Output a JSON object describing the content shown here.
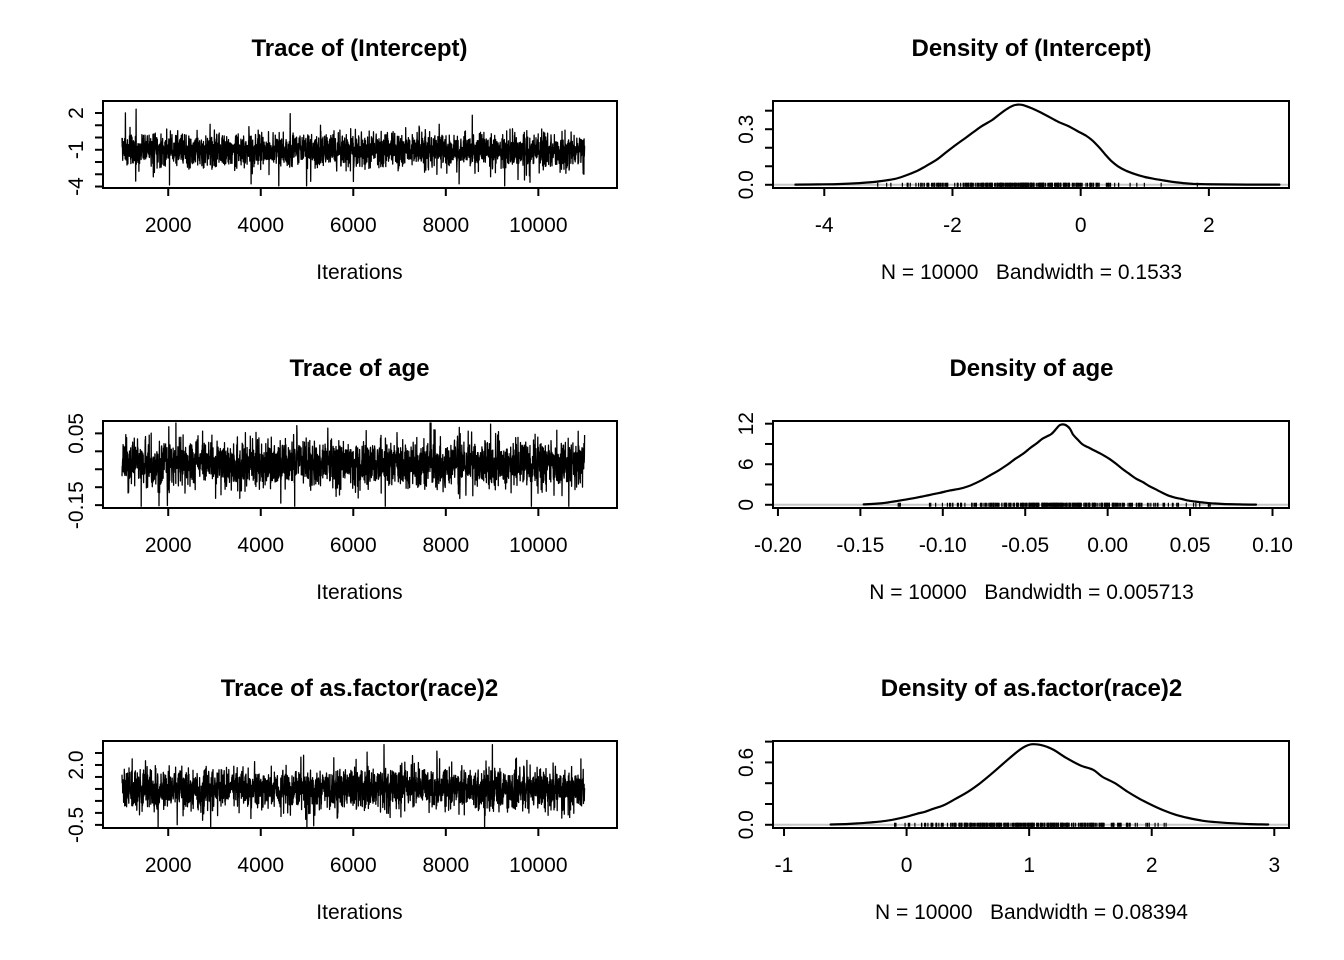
{
  "figure": {
    "background": "#ffffff",
    "foreground": "#000000",
    "baseline_color": "#c6c6c6"
  },
  "chart_data": [
    {
      "id": "trace-intercept",
      "type": "line",
      "kind": "trace",
      "title": "Trace of (Intercept)",
      "xlabel": "Iterations",
      "xlim": [
        590,
        11700
      ],
      "ylim": [
        -4.12,
        2.98
      ],
      "xticks": [
        {
          "v": 2000,
          "label": "2000"
        },
        {
          "v": 4000,
          "label": "4000"
        },
        {
          "v": 6000,
          "label": "6000"
        },
        {
          "v": 8000,
          "label": "8000"
        },
        {
          "v": 10000,
          "label": "10000"
        }
      ],
      "yticks": [
        {
          "v": -4,
          "label": "-4"
        },
        {
          "v": -3,
          "label": ""
        },
        {
          "v": -2,
          "label": ""
        },
        {
          "v": -1,
          "label": "-1"
        },
        {
          "v": 0,
          "label": ""
        },
        {
          "v": 1,
          "label": ""
        },
        {
          "v": 2,
          "label": "2"
        }
      ],
      "trace": {
        "start": 1001,
        "end": 11000,
        "n": 2600,
        "mean": -1.03,
        "sd": 0.69,
        "clip": [
          -3.95,
          2.32
        ],
        "spike_p": 0.006,
        "seed": 7
      }
    },
    {
      "id": "density-intercept",
      "type": "line",
      "kind": "density",
      "title": "Density of (Intercept)",
      "xlabel": "N = 10000   Bandwidth = 0.1533",
      "xlim": [
        -4.8,
        3.25
      ],
      "ylim": [
        -0.0174,
        0.4524
      ],
      "xticks": [
        {
          "v": -4,
          "label": "-4"
        },
        {
          "v": -2,
          "label": "-2"
        },
        {
          "v": 0,
          "label": "0"
        },
        {
          "v": 2,
          "label": "2"
        }
      ],
      "yticks": [
        {
          "v": 0,
          "label": "0.0"
        },
        {
          "v": 0.1,
          "label": ""
        },
        {
          "v": 0.2,
          "label": ""
        },
        {
          "v": 0.3,
          "label": "0.3"
        },
        {
          "v": 0.4,
          "label": ""
        }
      ],
      "points": [
        [
          -4.45,
          0.001
        ],
        [
          -4.1,
          0.002
        ],
        [
          -3.75,
          0.004
        ],
        [
          -3.45,
          0.009
        ],
        [
          -3.15,
          0.018
        ],
        [
          -2.9,
          0.032
        ],
        [
          -2.73,
          0.05
        ],
        [
          -2.55,
          0.075
        ],
        [
          -2.42,
          0.1
        ],
        [
          -2.25,
          0.135
        ],
        [
          -2.11,
          0.172
        ],
        [
          -1.95,
          0.215
        ],
        [
          -1.8,
          0.252
        ],
        [
          -1.69,
          0.28
        ],
        [
          -1.55,
          0.315
        ],
        [
          -1.38,
          0.35
        ],
        [
          -1.25,
          0.385
        ],
        [
          -1.15,
          0.41
        ],
        [
          -1.05,
          0.428
        ],
        [
          -0.98,
          0.433
        ],
        [
          -0.9,
          0.43
        ],
        [
          -0.78,
          0.415
        ],
        [
          -0.65,
          0.395
        ],
        [
          -0.5,
          0.368
        ],
        [
          -0.35,
          0.34
        ],
        [
          -0.2,
          0.318
        ],
        [
          -0.05,
          0.29
        ],
        [
          0.08,
          0.266
        ],
        [
          0.18,
          0.24
        ],
        [
          0.28,
          0.205
        ],
        [
          0.38,
          0.165
        ],
        [
          0.48,
          0.128
        ],
        [
          0.58,
          0.1
        ],
        [
          0.7,
          0.077
        ],
        [
          0.85,
          0.057
        ],
        [
          1.0,
          0.042
        ],
        [
          1.15,
          0.032
        ],
        [
          1.3,
          0.023
        ],
        [
          1.45,
          0.015
        ],
        [
          1.6,
          0.009
        ],
        [
          1.75,
          0.005
        ],
        [
          1.95,
          0.003
        ],
        [
          2.2,
          0.002
        ],
        [
          2.6,
          0.001
        ],
        [
          3.1,
          0.001
        ]
      ],
      "rug": {
        "mean": -1.0,
        "sd": 0.85,
        "n": 300,
        "range": [
          -4.4,
          3.05
        ],
        "seed": 13
      }
    },
    {
      "id": "trace-age",
      "type": "line",
      "kind": "trace",
      "title": "Trace of age",
      "xlabel": "Iterations",
      "xlim": [
        590,
        11700
      ],
      "ylim": [
        -0.158,
        0.0845
      ],
      "xticks": [
        {
          "v": 2000,
          "label": "2000"
        },
        {
          "v": 4000,
          "label": "4000"
        },
        {
          "v": 6000,
          "label": "6000"
        },
        {
          "v": 8000,
          "label": "8000"
        },
        {
          "v": 10000,
          "label": "10000"
        }
      ],
      "yticks": [
        {
          "v": -0.15,
          "label": "-0.15"
        },
        {
          "v": -0.1,
          "label": ""
        },
        {
          "v": -0.05,
          "label": ""
        },
        {
          "v": 0.0,
          "label": ""
        },
        {
          "v": 0.05,
          "label": "0.05"
        }
      ],
      "trace": {
        "start": 1001,
        "end": 11000,
        "n": 2600,
        "mean": -0.0335,
        "sd": 0.0325,
        "clip": [
          -0.153,
          0.079
        ],
        "spike_p": 0.006,
        "seed": 23
      }
    },
    {
      "id": "density-age",
      "type": "line",
      "kind": "density",
      "title": "Density of age",
      "xlabel": "N = 10000   Bandwidth = 0.005713",
      "xlim": [
        -0.203,
        0.11
      ],
      "ylim": [
        -0.477,
        12.4
      ],
      "xticks": [
        {
          "v": -0.2,
          "label": "-0.20"
        },
        {
          "v": -0.15,
          "label": "-0.15"
        },
        {
          "v": -0.1,
          "label": "-0.10"
        },
        {
          "v": -0.05,
          "label": "-0.05"
        },
        {
          "v": 0.0,
          "label": "0.00"
        },
        {
          "v": 0.05,
          "label": "0.05"
        },
        {
          "v": 0.1,
          "label": "0.10"
        }
      ],
      "yticks": [
        {
          "v": 0,
          "label": "0"
        },
        {
          "v": 3,
          "label": ""
        },
        {
          "v": 6,
          "label": "6"
        },
        {
          "v": 9,
          "label": ""
        },
        {
          "v": 12,
          "label": "12"
        }
      ],
      "points": [
        [
          -0.148,
          0.05
        ],
        [
          -0.138,
          0.2
        ],
        [
          -0.128,
          0.55
        ],
        [
          -0.122,
          0.8
        ],
        [
          -0.115,
          1.1
        ],
        [
          -0.108,
          1.45
        ],
        [
          -0.102,
          1.76
        ],
        [
          -0.096,
          2.1
        ],
        [
          -0.09,
          2.36
        ],
        [
          -0.085,
          2.7
        ],
        [
          -0.081,
          3.1
        ],
        [
          -0.076,
          3.7
        ],
        [
          -0.071,
          4.4
        ],
        [
          -0.066,
          5.1
        ],
        [
          -0.061,
          5.9
        ],
        [
          -0.056,
          6.8
        ],
        [
          -0.051,
          7.6
        ],
        [
          -0.047,
          8.4
        ],
        [
          -0.043,
          9.1
        ],
        [
          -0.04,
          9.7
        ],
        [
          -0.037,
          10.1
        ],
        [
          -0.034,
          10.5
        ],
        [
          -0.031,
          11.3
        ],
        [
          -0.029,
          11.8
        ],
        [
          -0.026,
          11.85
        ],
        [
          -0.023,
          11.3
        ],
        [
          -0.021,
          10.4
        ],
        [
          -0.018,
          9.6
        ],
        [
          -0.015,
          8.9
        ],
        [
          -0.011,
          8.4
        ],
        [
          -0.007,
          7.9
        ],
        [
          -0.003,
          7.4
        ],
        [
          0.001,
          6.8
        ],
        [
          0.005,
          6.1
        ],
        [
          0.009,
          5.3
        ],
        [
          0.013,
          4.6
        ],
        [
          0.017,
          3.9
        ],
        [
          0.021,
          3.4
        ],
        [
          0.025,
          2.8
        ],
        [
          0.029,
          2.3
        ],
        [
          0.033,
          1.8
        ],
        [
          0.037,
          1.35
        ],
        [
          0.041,
          1.05
        ],
        [
          0.045,
          0.85
        ],
        [
          0.049,
          0.62
        ],
        [
          0.053,
          0.48
        ],
        [
          0.058,
          0.33
        ],
        [
          0.063,
          0.22
        ],
        [
          0.07,
          0.12
        ],
        [
          0.08,
          0.05
        ],
        [
          0.09,
          0.02
        ]
      ],
      "rug": {
        "mean": -0.033,
        "sd": 0.036,
        "n": 300,
        "range": [
          -0.147,
          0.108
        ],
        "seed": 29
      }
    },
    {
      "id": "trace-race2",
      "type": "line",
      "kind": "trace",
      "title": "Trace of as.factor(race)2",
      "xlabel": "Iterations",
      "xlim": [
        590,
        11700
      ],
      "ylim": [
        -0.63,
        3.0
      ],
      "xticks": [
        {
          "v": 2000,
          "label": "2000"
        },
        {
          "v": 4000,
          "label": "4000"
        },
        {
          "v": 6000,
          "label": "6000"
        },
        {
          "v": 8000,
          "label": "8000"
        },
        {
          "v": 10000,
          "label": "10000"
        }
      ],
      "yticks": [
        {
          "v": -0.5,
          "label": "-0.5"
        },
        {
          "v": 0,
          "label": ""
        },
        {
          "v": 0.5,
          "label": ""
        },
        {
          "v": 1,
          "label": ""
        },
        {
          "v": 1.5,
          "label": ""
        },
        {
          "v": 2,
          "label": "2.0"
        },
        {
          "v": 2.5,
          "label": ""
        }
      ],
      "trace": {
        "start": 1001,
        "end": 11000,
        "n": 2600,
        "mean": 0.99,
        "sd": 0.43,
        "clip": [
          -0.58,
          2.85
        ],
        "spike_p": 0.006,
        "seed": 31
      }
    },
    {
      "id": "density-race2",
      "type": "line",
      "kind": "density",
      "title": "Density of as.factor(race)2",
      "xlabel": "N = 10000   Bandwidth = 0.08394",
      "xlim": [
        -1.09,
        3.12
      ],
      "ylim": [
        -0.031,
        0.806
      ],
      "xticks": [
        {
          "v": -1,
          "label": "-1"
        },
        {
          "v": 0,
          "label": "0"
        },
        {
          "v": 1,
          "label": "1"
        },
        {
          "v": 2,
          "label": "2"
        },
        {
          "v": 3,
          "label": "3"
        }
      ],
      "yticks": [
        {
          "v": 0,
          "label": "0.0"
        },
        {
          "v": 0.2,
          "label": ""
        },
        {
          "v": 0.4,
          "label": ""
        },
        {
          "v": 0.6,
          "label": "0.6"
        },
        {
          "v": 0.8,
          "label": ""
        }
      ],
      "points": [
        [
          -0.62,
          0.003
        ],
        [
          -0.5,
          0.007
        ],
        [
          -0.4,
          0.013
        ],
        [
          -0.3,
          0.022
        ],
        [
          -0.2,
          0.033
        ],
        [
          -0.1,
          0.052
        ],
        [
          0.0,
          0.078
        ],
        [
          0.08,
          0.105
        ],
        [
          0.15,
          0.125
        ],
        [
          0.22,
          0.155
        ],
        [
          0.3,
          0.186
        ],
        [
          0.4,
          0.25
        ],
        [
          0.5,
          0.317
        ],
        [
          0.6,
          0.4
        ],
        [
          0.7,
          0.497
        ],
        [
          0.8,
          0.6
        ],
        [
          0.9,
          0.7
        ],
        [
          0.97,
          0.755
        ],
        [
          1.03,
          0.775
        ],
        [
          1.12,
          0.76
        ],
        [
          1.2,
          0.72
        ],
        [
          1.3,
          0.645
        ],
        [
          1.42,
          0.57
        ],
        [
          1.52,
          0.53
        ],
        [
          1.6,
          0.46
        ],
        [
          1.7,
          0.4
        ],
        [
          1.8,
          0.32
        ],
        [
          1.9,
          0.25
        ],
        [
          2.0,
          0.19
        ],
        [
          2.1,
          0.137
        ],
        [
          2.2,
          0.095
        ],
        [
          2.3,
          0.065
        ],
        [
          2.4,
          0.042
        ],
        [
          2.5,
          0.028
        ],
        [
          2.65,
          0.015
        ],
        [
          2.8,
          0.007
        ],
        [
          2.95,
          0.003
        ]
      ],
      "rug": {
        "mean": 1.0,
        "sd": 0.46,
        "n": 300,
        "range": [
          -0.75,
          2.9
        ],
        "seed": 37
      }
    }
  ]
}
